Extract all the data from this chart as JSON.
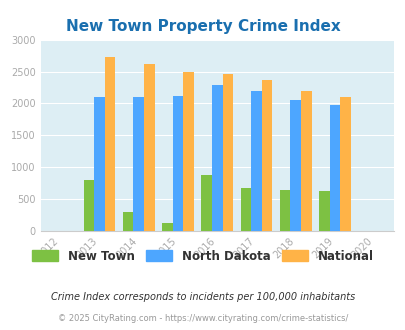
{
  "title": "New Town Property Crime Index",
  "all_years": [
    2012,
    2013,
    2014,
    2015,
    2016,
    2017,
    2018,
    2019,
    2020
  ],
  "bar_years": [
    2013,
    2014,
    2015,
    2016,
    2017,
    2018,
    2019
  ],
  "new_town": [
    800,
    300,
    130,
    870,
    670,
    640,
    630
  ],
  "north_dakota": [
    2100,
    2100,
    2110,
    2290,
    2190,
    2050,
    1975
  ],
  "national": [
    2730,
    2610,
    2500,
    2460,
    2360,
    2190,
    2100
  ],
  "color_new_town": "#7dc143",
  "color_north_dakota": "#4da6ff",
  "color_national": "#ffb347",
  "background_color": "#ddeef4",
  "ylim": [
    0,
    3000
  ],
  "yticks": [
    0,
    500,
    1000,
    1500,
    2000,
    2500,
    3000
  ],
  "legend_labels": [
    "New Town",
    "North Dakota",
    "National"
  ],
  "footnote1": "Crime Index corresponds to incidents per 100,000 inhabitants",
  "footnote2": "© 2025 CityRating.com - https://www.cityrating.com/crime-statistics/",
  "title_color": "#1a6faf",
  "footnote1_color": "#333333",
  "footnote2_color": "#999999",
  "tick_color": "#aaaaaa",
  "grid_color": "#ffffff"
}
